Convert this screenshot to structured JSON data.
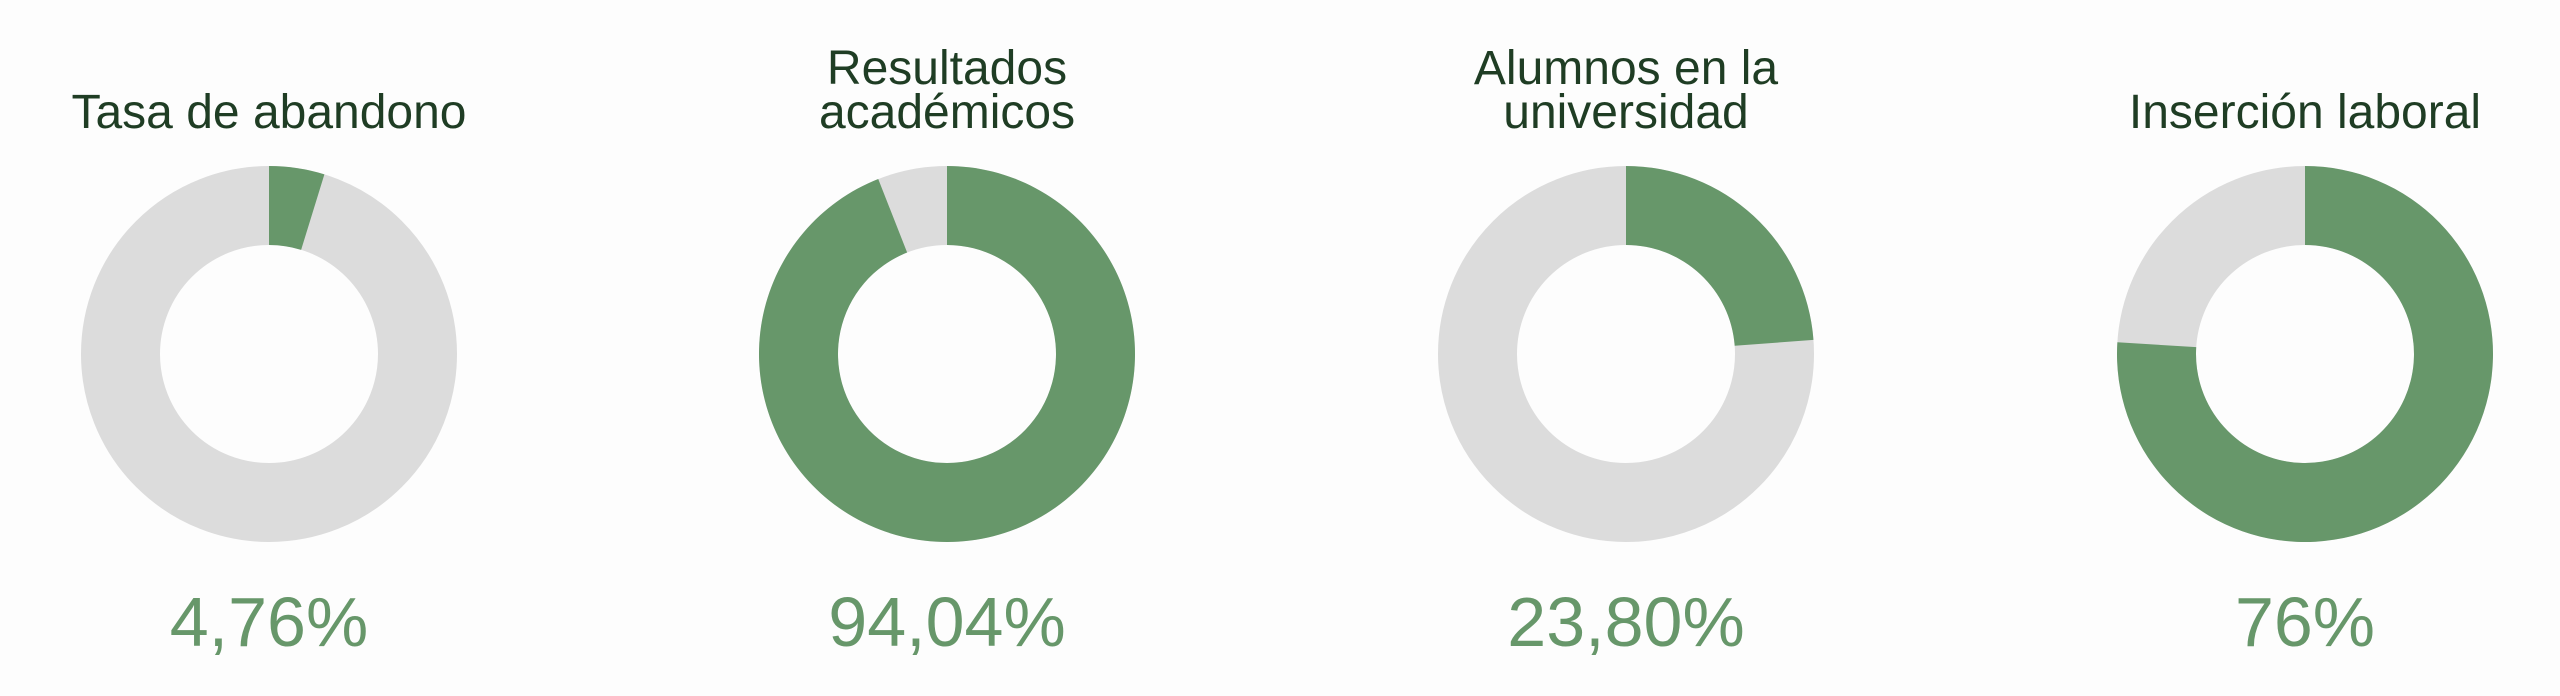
{
  "chart_data": [
    {
      "type": "donut",
      "title": "Tasa de abandono",
      "values": [
        4.76
      ],
      "value_labels": [
        "4,76%"
      ],
      "total": 100,
      "color": "#67976a",
      "track_color": "#dcdcdc"
    },
    {
      "type": "donut",
      "title": "Resultados académicos",
      "values": [
        94.04
      ],
      "value_labels": [
        "94,04%"
      ],
      "total": 100,
      "color": "#67976a",
      "track_color": "#dcdcdc"
    },
    {
      "type": "donut",
      "title": "Alumnos en la universidad",
      "values": [
        23.8
      ],
      "value_labels": [
        "23,80%"
      ],
      "total": 100,
      "color": "#67976a",
      "track_color": "#dcdcdc"
    },
    {
      "type": "donut",
      "title": "Inserción laboral",
      "values": [
        76
      ],
      "value_labels": [
        "76%"
      ],
      "total": 100,
      "color": "#67976a",
      "track_color": "#dcdcdc"
    }
  ]
}
